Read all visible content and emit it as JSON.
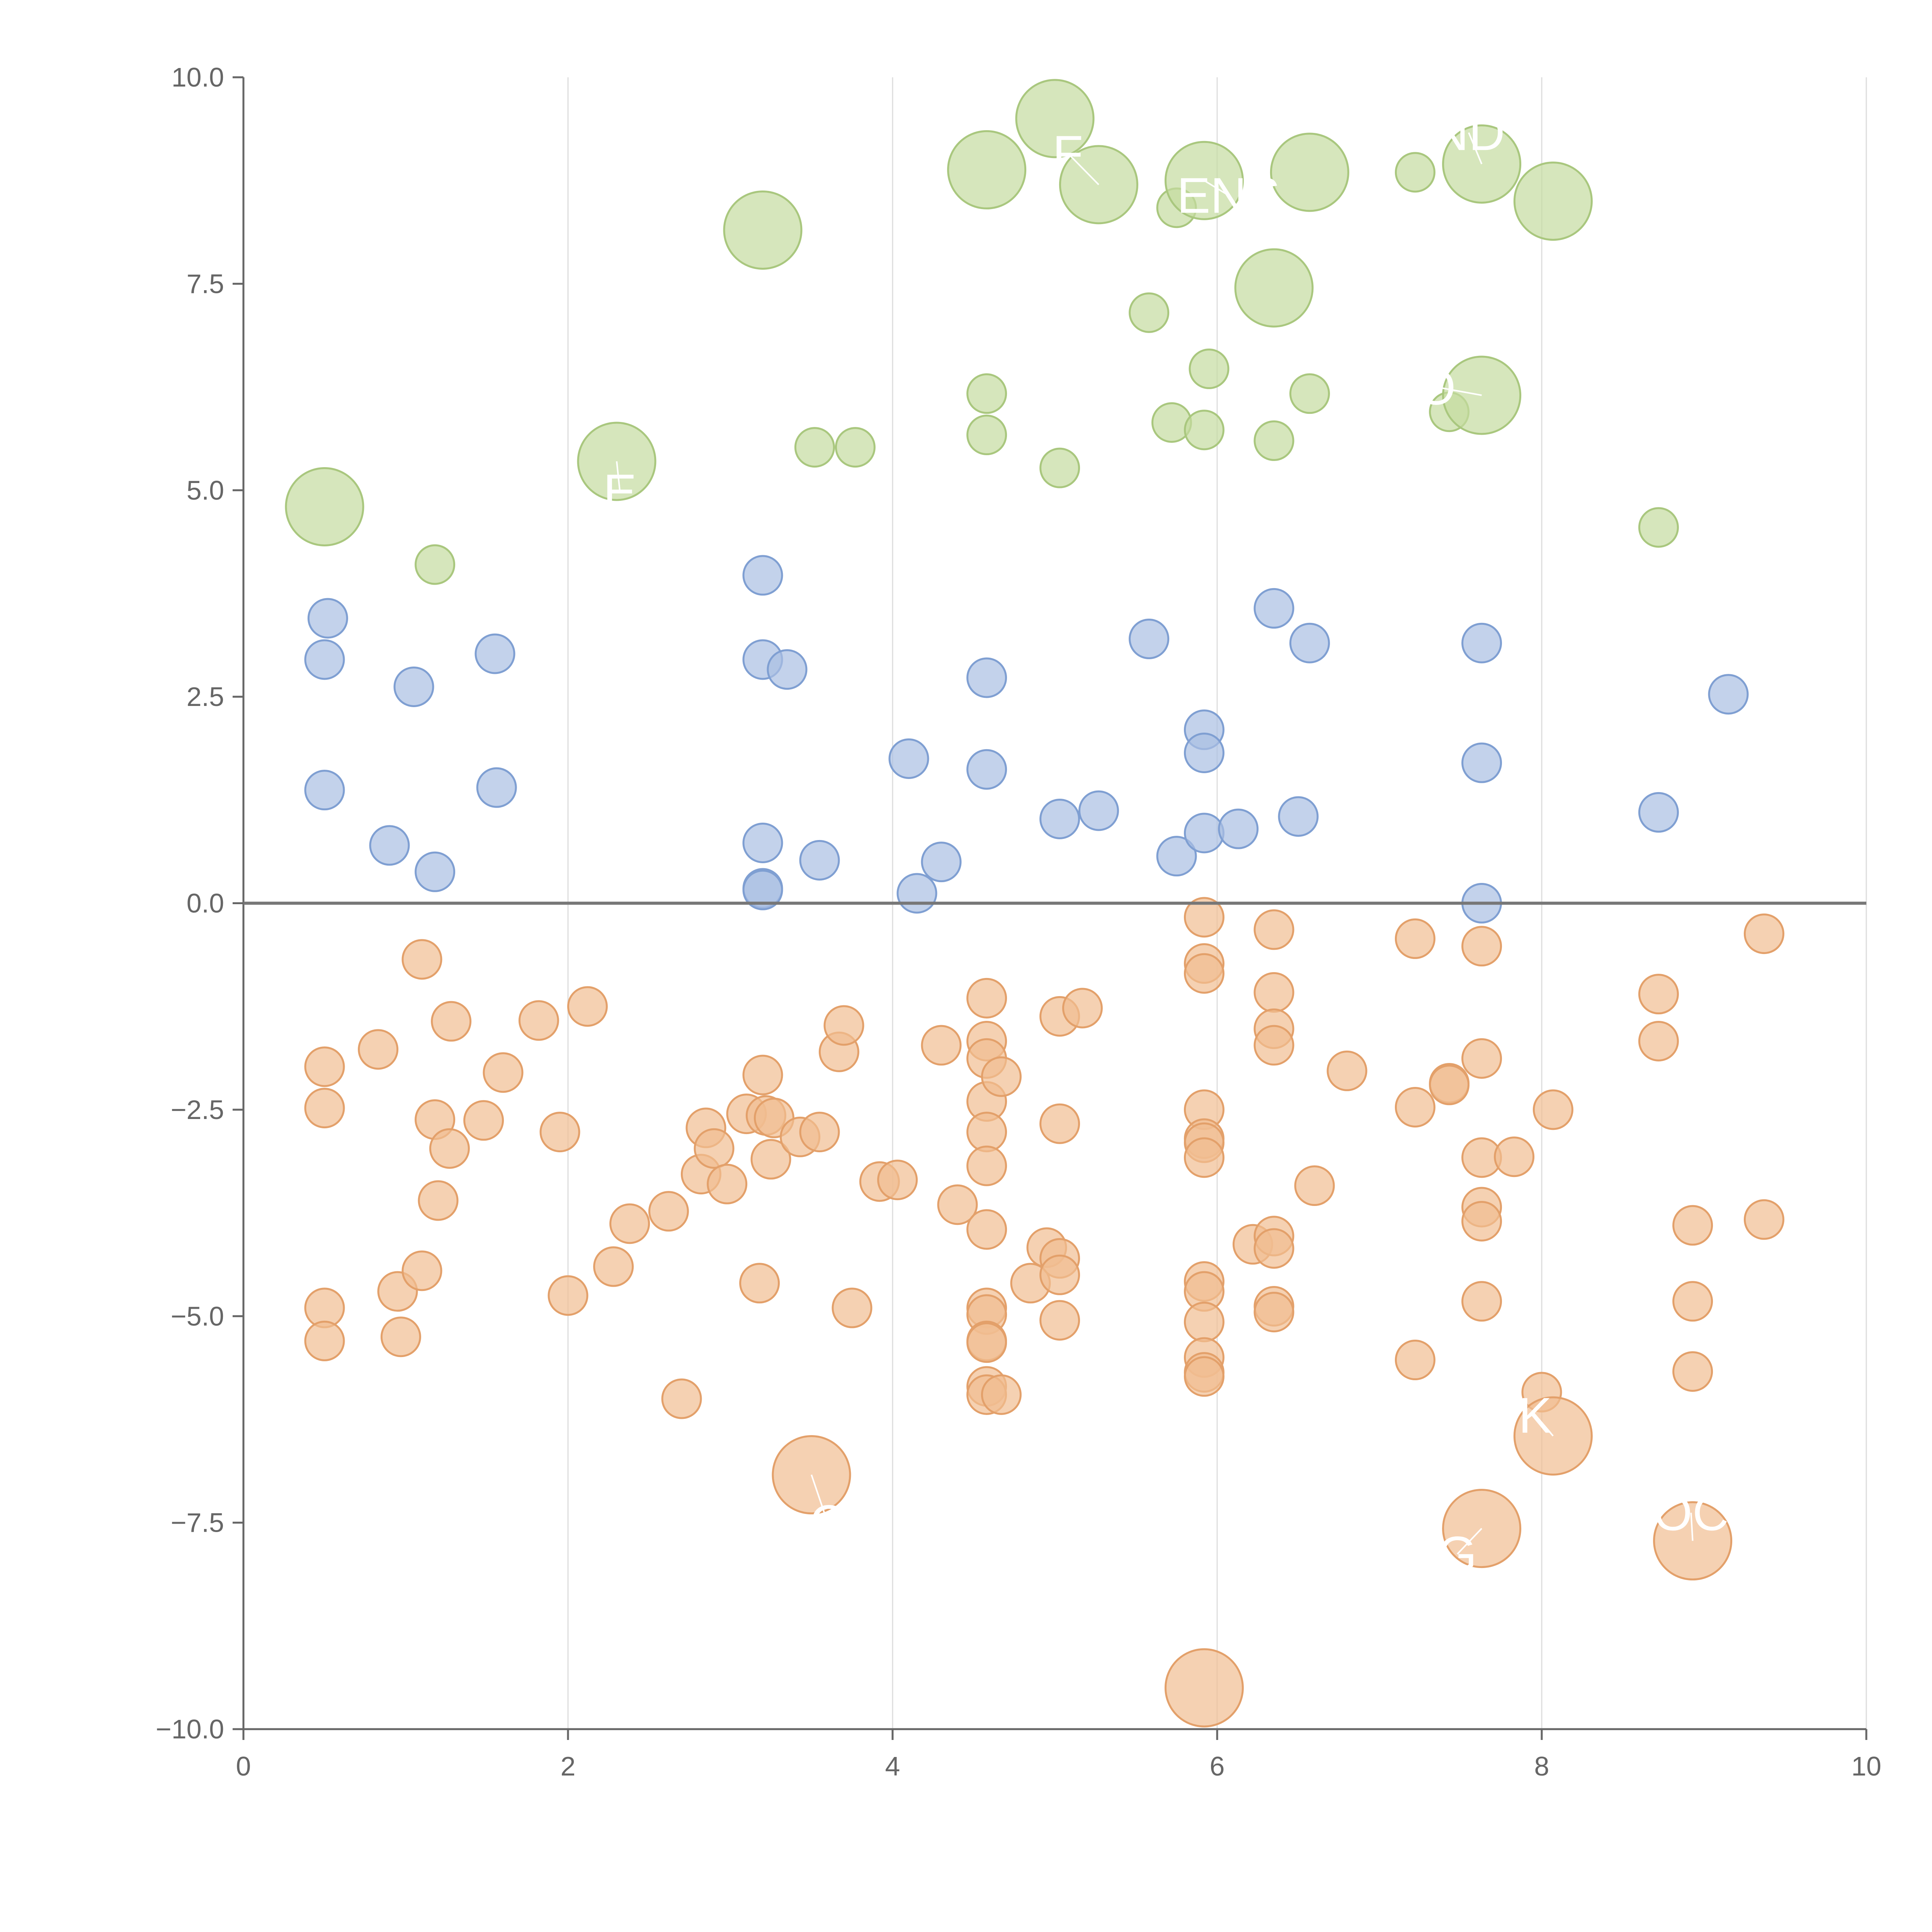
{
  "chart_data": {
    "type": "scatter",
    "title": "",
    "xlabel": "",
    "ylabel": "",
    "xlim": [
      0,
      10
    ],
    "ylim": [
      -10,
      10
    ],
    "x_ticks": [
      0,
      2,
      4,
      6,
      8,
      10
    ],
    "x_tick_labels": [
      "0",
      "2",
      "4",
      "6",
      "8",
      "10"
    ],
    "y_ticks": [
      -10,
      -7.5,
      -5,
      -2.5,
      0,
      2.5,
      5,
      7.5,
      10
    ],
    "y_tick_labels": [
      "−10.0",
      "−7.5",
      "−5.0",
      "−2.5",
      "0.0",
      "2.5",
      "5.0",
      "7.5",
      "10.0"
    ],
    "vertical_grid": true,
    "horizontal_grid": false,
    "zero_line": true,
    "legend": "none",
    "colors": {
      "green_fill": "#c5dca0",
      "green_stroke": "#a9c77e",
      "blue_fill": "#a9bfe3",
      "blue_stroke": "#7f9fd2",
      "orange_fill": "#f1bd91",
      "orange_stroke": "#e3a06a",
      "axis": "#666666",
      "grid": "#dddddd"
    },
    "series": [
      {
        "color_key": "green",
        "points": [
          {
            "x": 0.5,
            "y": 4.8,
            "size": "large"
          },
          {
            "x": 1.18,
            "y": 4.1
          },
          {
            "x": 2.3,
            "y": 5.35,
            "size": "large"
          },
          {
            "x": 3.2,
            "y": 8.15,
            "size": "large"
          },
          {
            "x": 3.52,
            "y": 5.52
          },
          {
            "x": 3.77,
            "y": 5.52
          },
          {
            "x": 4.58,
            "y": 8.88,
            "size": "large"
          },
          {
            "x": 4.58,
            "y": 6.17
          },
          {
            "x": 4.58,
            "y": 5.67
          },
          {
            "x": 5.0,
            "y": 9.5,
            "size": "large"
          },
          {
            "x": 5.03,
            "y": 5.27
          },
          {
            "x": 5.27,
            "y": 8.7,
            "size": "large"
          },
          {
            "x": 5.58,
            "y": 7.15
          },
          {
            "x": 5.72,
            "y": 5.82
          },
          {
            "x": 5.75,
            "y": 8.42
          },
          {
            "x": 5.92,
            "y": 8.75,
            "size": "large"
          },
          {
            "x": 5.92,
            "y": 5.73
          },
          {
            "x": 5.95,
            "y": 6.47
          },
          {
            "x": 6.35,
            "y": 7.45,
            "size": "large"
          },
          {
            "x": 6.35,
            "y": 5.6
          },
          {
            "x": 6.57,
            "y": 8.85,
            "size": "large"
          },
          {
            "x": 6.57,
            "y": 6.17
          },
          {
            "x": 7.22,
            "y": 8.85
          },
          {
            "x": 7.43,
            "y": 5.95
          },
          {
            "x": 7.63,
            "y": 8.95,
            "size": "large"
          },
          {
            "x": 7.63,
            "y": 6.15,
            "size": "large"
          },
          {
            "x": 8.07,
            "y": 8.5,
            "size": "large"
          },
          {
            "x": 8.72,
            "y": 4.55
          }
        ]
      },
      {
        "color_key": "blue",
        "points": [
          {
            "x": 0.5,
            "y": 2.95
          },
          {
            "x": 0.52,
            "y": 3.45
          },
          {
            "x": 0.5,
            "y": 1.37
          },
          {
            "x": 0.9,
            "y": 0.7
          },
          {
            "x": 1.05,
            "y": 2.62
          },
          {
            "x": 1.18,
            "y": 0.38
          },
          {
            "x": 1.55,
            "y": 3.02
          },
          {
            "x": 1.56,
            "y": 1.4
          },
          {
            "x": 3.2,
            "y": 3.97
          },
          {
            "x": 3.2,
            "y": 2.95
          },
          {
            "x": 3.35,
            "y": 2.83
          },
          {
            "x": 3.2,
            "y": 0.73
          },
          {
            "x": 3.2,
            "y": 0.18
          },
          {
            "x": 3.2,
            "y": 0.16
          },
          {
            "x": 3.55,
            "y": 0.52
          },
          {
            "x": 4.1,
            "y": 1.75
          },
          {
            "x": 4.15,
            "y": 0.12
          },
          {
            "x": 4.3,
            "y": 0.5
          },
          {
            "x": 4.58,
            "y": 2.73
          },
          {
            "x": 4.58,
            "y": 1.62
          },
          {
            "x": 5.03,
            "y": 1.02
          },
          {
            "x": 5.27,
            "y": 1.12
          },
          {
            "x": 5.58,
            "y": 3.2
          },
          {
            "x": 5.75,
            "y": 0.57
          },
          {
            "x": 5.92,
            "y": 2.1
          },
          {
            "x": 5.92,
            "y": 1.82
          },
          {
            "x": 5.92,
            "y": 0.85
          },
          {
            "x": 6.13,
            "y": 0.9
          },
          {
            "x": 6.35,
            "y": 3.57
          },
          {
            "x": 6.5,
            "y": 1.05
          },
          {
            "x": 6.57,
            "y": 3.15
          },
          {
            "x": 7.63,
            "y": 3.15
          },
          {
            "x": 7.63,
            "y": 1.7
          },
          {
            "x": 7.63,
            "y": 0.0
          },
          {
            "x": 8.72,
            "y": 1.1
          },
          {
            "x": 9.15,
            "y": 2.53
          }
        ]
      },
      {
        "color_key": "orange",
        "points": [
          {
            "x": 0.5,
            "y": -1.98
          },
          {
            "x": 0.5,
            "y": -2.48
          },
          {
            "x": 0.5,
            "y": -4.9
          },
          {
            "x": 0.5,
            "y": -5.3
          },
          {
            "x": 0.83,
            "y": -1.77
          },
          {
            "x": 0.95,
            "y": -4.7
          },
          {
            "x": 0.97,
            "y": -5.25
          },
          {
            "x": 1.1,
            "y": -0.68
          },
          {
            "x": 1.1,
            "y": -4.45
          },
          {
            "x": 1.18,
            "y": -2.62
          },
          {
            "x": 1.2,
            "y": -3.6
          },
          {
            "x": 1.27,
            "y": -2.97
          },
          {
            "x": 1.28,
            "y": -1.43
          },
          {
            "x": 1.48,
            "y": -2.63
          },
          {
            "x": 1.6,
            "y": -2.05
          },
          {
            "x": 1.82,
            "y": -1.42
          },
          {
            "x": 1.95,
            "y": -2.77
          },
          {
            "x": 2.0,
            "y": -4.75
          },
          {
            "x": 2.12,
            "y": -1.25
          },
          {
            "x": 2.28,
            "y": -4.4
          },
          {
            "x": 2.38,
            "y": -3.88
          },
          {
            "x": 2.62,
            "y": -3.73
          },
          {
            "x": 2.7,
            "y": -6.0
          },
          {
            "x": 2.82,
            "y": -3.28
          },
          {
            "x": 2.85,
            "y": -2.72
          },
          {
            "x": 2.9,
            "y": -2.97
          },
          {
            "x": 2.98,
            "y": -3.4
          },
          {
            "x": 3.1,
            "y": -2.55
          },
          {
            "x": 3.18,
            "y": -4.6
          },
          {
            "x": 3.2,
            "y": -2.08
          },
          {
            "x": 3.22,
            "y": -2.57
          },
          {
            "x": 3.25,
            "y": -3.1
          },
          {
            "x": 3.27,
            "y": -2.6
          },
          {
            "x": 3.43,
            "y": -2.83
          },
          {
            "x": 3.5,
            "y": -6.92,
            "size": "large"
          },
          {
            "x": 3.55,
            "y": -2.77
          },
          {
            "x": 3.67,
            "y": -1.8
          },
          {
            "x": 3.7,
            "y": -1.48
          },
          {
            "x": 3.75,
            "y": -4.9
          },
          {
            "x": 3.92,
            "y": -3.37
          },
          {
            "x": 4.03,
            "y": -3.35
          },
          {
            "x": 4.3,
            "y": -1.72
          },
          {
            "x": 4.4,
            "y": -3.65
          },
          {
            "x": 4.58,
            "y": -1.15
          },
          {
            "x": 4.58,
            "y": -1.67
          },
          {
            "x": 4.58,
            "y": -1.88
          },
          {
            "x": 4.58,
            "y": -2.4
          },
          {
            "x": 4.58,
            "y": -2.77
          },
          {
            "x": 4.58,
            "y": -3.18
          },
          {
            "x": 4.58,
            "y": -3.95
          },
          {
            "x": 4.58,
            "y": -4.9
          },
          {
            "x": 4.58,
            "y": -4.98
          },
          {
            "x": 4.58,
            "y": -5.3
          },
          {
            "x": 4.58,
            "y": -5.32
          },
          {
            "x": 4.58,
            "y": -5.85
          },
          {
            "x": 4.58,
            "y": -5.95
          },
          {
            "x": 4.67,
            "y": -2.1
          },
          {
            "x": 4.67,
            "y": -5.95
          },
          {
            "x": 4.85,
            "y": -4.6
          },
          {
            "x": 4.95,
            "y": -4.17
          },
          {
            "x": 5.03,
            "y": -1.37
          },
          {
            "x": 5.03,
            "y": -2.67
          },
          {
            "x": 5.03,
            "y": -4.3
          },
          {
            "x": 5.03,
            "y": -4.5
          },
          {
            "x": 5.03,
            "y": -5.05
          },
          {
            "x": 5.17,
            "y": -1.27
          },
          {
            "x": 5.92,
            "y": -0.17
          },
          {
            "x": 5.92,
            "y": -0.73
          },
          {
            "x": 5.92,
            "y": -0.85
          },
          {
            "x": 5.92,
            "y": -2.5
          },
          {
            "x": 5.92,
            "y": -2.85
          },
          {
            "x": 5.92,
            "y": -2.9
          },
          {
            "x": 5.92,
            "y": -3.08
          },
          {
            "x": 5.92,
            "y": -4.58
          },
          {
            "x": 5.92,
            "y": -4.7
          },
          {
            "x": 5.92,
            "y": -5.07
          },
          {
            "x": 5.92,
            "y": -5.5
          },
          {
            "x": 5.92,
            "y": -5.68
          },
          {
            "x": 5.92,
            "y": -5.73
          },
          {
            "x": 5.92,
            "y": -9.5,
            "size": "large"
          },
          {
            "x": 6.22,
            "y": -4.13
          },
          {
            "x": 6.35,
            "y": -0.32
          },
          {
            "x": 6.35,
            "y": -1.08
          },
          {
            "x": 6.35,
            "y": -1.52
          },
          {
            "x": 6.35,
            "y": -1.72
          },
          {
            "x": 6.35,
            "y": -4.03
          },
          {
            "x": 6.35,
            "y": -4.18
          },
          {
            "x": 6.35,
            "y": -4.88
          },
          {
            "x": 6.35,
            "y": -4.95
          },
          {
            "x": 6.6,
            "y": -3.42
          },
          {
            "x": 6.8,
            "y": -2.03
          },
          {
            "x": 7.22,
            "y": -0.43
          },
          {
            "x": 7.22,
            "y": -2.47
          },
          {
            "x": 7.22,
            "y": -5.53
          },
          {
            "x": 7.43,
            "y": -2.18
          },
          {
            "x": 7.43,
            "y": -2.2
          },
          {
            "x": 7.63,
            "y": -0.52
          },
          {
            "x": 7.63,
            "y": -1.88
          },
          {
            "x": 7.63,
            "y": -3.08
          },
          {
            "x": 7.63,
            "y": -3.68
          },
          {
            "x": 7.63,
            "y": -3.85
          },
          {
            "x": 7.63,
            "y": -4.82
          },
          {
            "x": 7.63,
            "y": -7.57,
            "size": "large"
          },
          {
            "x": 7.83,
            "y": -3.07
          },
          {
            "x": 8.0,
            "y": -5.92
          },
          {
            "x": 8.07,
            "y": -2.5
          },
          {
            "x": 8.07,
            "y": -6.45,
            "size": "large"
          },
          {
            "x": 8.72,
            "y": -1.1
          },
          {
            "x": 8.72,
            "y": -1.67
          },
          {
            "x": 8.93,
            "y": -3.9
          },
          {
            "x": 8.93,
            "y": -4.82
          },
          {
            "x": 8.93,
            "y": -5.67
          },
          {
            "x": 8.93,
            "y": -7.72,
            "size": "large"
          },
          {
            "x": 9.37,
            "y": -0.37
          },
          {
            "x": 9.37,
            "y": -3.83
          }
        ]
      }
    ],
    "annotations": [
      {
        "text": "E",
        "x": 2.3,
        "y": 5.35,
        "tx": 2.32,
        "ty": 4.98
      },
      {
        "text": "O",
        "x": 7.63,
        "y": 6.15,
        "tx": 7.35,
        "ty": 6.25
      },
      {
        "text": "F",
        "x": 5.27,
        "y": 8.7,
        "tx": 5.08,
        "ty": 9.08
      },
      {
        "text": "ENS",
        "x": 5.92,
        "y": 8.75,
        "tx": 6.07,
        "ty": 8.57
      },
      {
        "text": "ND",
        "x": 7.63,
        "y": 8.95,
        "tx": 7.55,
        "ty": 9.33
      },
      {
        "text": "K",
        "x": 8.07,
        "y": -6.45,
        "tx": 7.96,
        "ty": -6.2
      },
      {
        "text": "OC",
        "x": 8.93,
        "y": -7.72,
        "tx": 8.92,
        "ty": -7.38
      },
      {
        "text": "G",
        "x": 7.63,
        "y": -7.57,
        "tx": 7.48,
        "ty": -7.88
      },
      {
        "text": "C",
        "x": 3.5,
        "y": -6.92,
        "tx": 3.6,
        "ty": -7.5
      }
    ]
  }
}
